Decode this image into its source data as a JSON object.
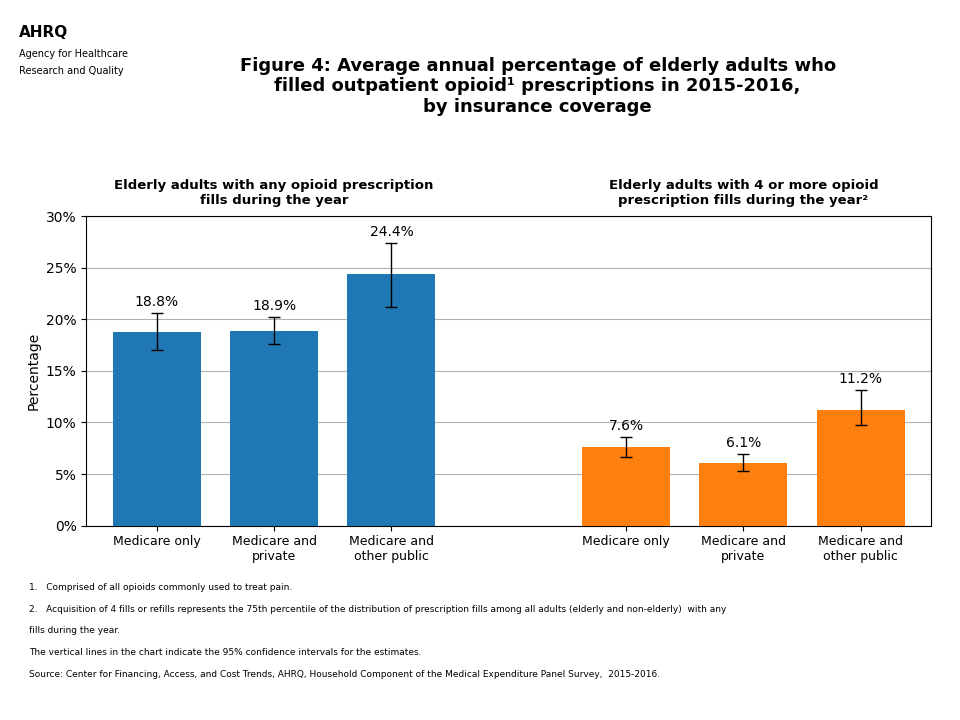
{
  "chart_data": {
    "type": "bar",
    "title": "Figure 4: Average annual percentage of elderly adults who\nfilled outpatient opioid¹ prescriptions in 2015-2016,\nby insurance coverage",
    "ylabel": "Percentage",
    "groups": [
      {
        "title": "Elderly adults with any opioid prescription\nfills during the year",
        "categories": [
          "Medicare only",
          "Medicare and\nprivate",
          "Medicare and\nother public"
        ],
        "values": [
          18.8,
          18.9,
          24.4
        ],
        "errors_low": [
          1.8,
          1.3,
          3.2
        ],
        "errors_high": [
          1.8,
          1.3,
          3.0
        ],
        "value_labels": [
          "18.8%",
          "18.9%",
          "24.4%"
        ],
        "color": "#1f77b4"
      },
      {
        "title": "Elderly adults with 4 or more opioid\nprescription fills during the year²",
        "categories": [
          "Medicare only",
          "Medicare and\nprivate",
          "Medicare and\nother public"
        ],
        "values": [
          7.6,
          6.1,
          11.2
        ],
        "errors_low": [
          1.0,
          0.8,
          1.5
        ],
        "errors_high": [
          1.0,
          0.8,
          1.9
        ],
        "value_labels": [
          "7.6%",
          "6.1%",
          "11.2%"
        ],
        "color": "#ff7f0e"
      }
    ],
    "ylim": [
      0,
      30
    ],
    "yticks": [
      {
        "value": 0,
        "label": "0%"
      },
      {
        "value": 5,
        "label": "5%"
      },
      {
        "value": 10,
        "label": "10%"
      },
      {
        "value": 15,
        "label": "15%"
      },
      {
        "value": 20,
        "label": "20%"
      },
      {
        "value": 25,
        "label": "25%"
      },
      {
        "value": 30,
        "label": "30%"
      }
    ],
    "grid": true,
    "data_labels": true,
    "annotations": [
      "AHRQ",
      "Agency for Healthcare",
      "Research and Quality"
    ],
    "footnotes": [
      "1.   Comprised of all opioids commonly used to treat pain.",
      "2.   Acquisition of 4 fills or refills represents the 75th percentile of the distribution of prescription fills among all adults (elderly and non-elderly)  with any",
      "fills during the year.",
      "The vertical lines in the chart indicate the 95% confidence intervals for the estimates.",
      "Source: Center for Financing, Access, and Cost Trends, AHRQ, Household Component of the Medical Expenditure Panel Survey,  2015-2016."
    ]
  }
}
